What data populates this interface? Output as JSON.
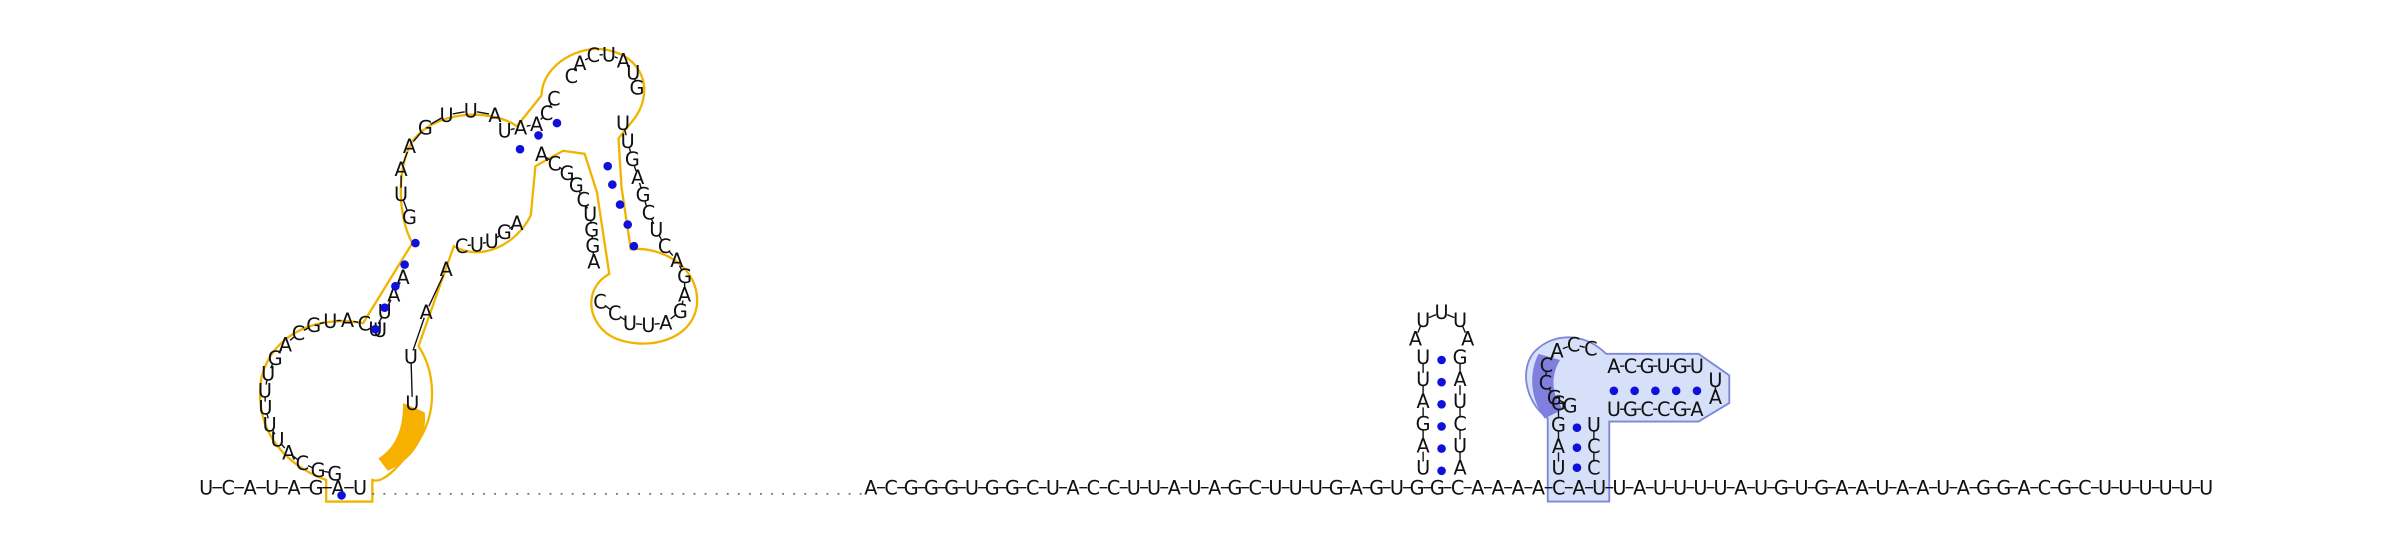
{
  "structure": {
    "five_prime_segment": "UCAUAGAU",
    "three_prime_segment": "ACGGGUGGCUACCUUAUAGCUUUGAGUGGCAAAACAUUAUUUUAUGUGAAUAAUAGGACGCUUUUUU",
    "hairpin_middle": {
      "stem_5": "UAGAUU",
      "loop": "AUUUA",
      "stem_3": "GAUCUA"
    },
    "right_domain": {
      "bottom_left": "UAGG",
      "loop_left": "GGCCACC",
      "top_stem": "ACGUGU",
      "cap": "UA",
      "bottom_stem": "AGCCGU",
      "bottom_right": "UCC"
    },
    "left_domain": {
      "outer_bulge": "GGCAUUUUUGACGUACU",
      "mid_stem_a": "UUAA",
      "mid_stem_b": "AAUU",
      "inner_loop_a": "GUAAGUUA",
      "inner_loop_b": "AGUUC",
      "top_arm": "UUGAGCUCAGAGAUUCC",
      "small_loop": "CACUAUG",
      "arm_down": "AGGUCGGCA",
      "connector": "UAACC"
    }
  },
  "colors": {
    "left_domain_outline": "#f0b400",
    "left_domain_highlight": "#f5b000",
    "right_domain_fill": "#d6e0f8",
    "right_domain_outline": "#7e86d8",
    "right_domain_highlight": "#7f7fe0",
    "base_pair_dot": "#1010dd",
    "text": "#111111"
  }
}
